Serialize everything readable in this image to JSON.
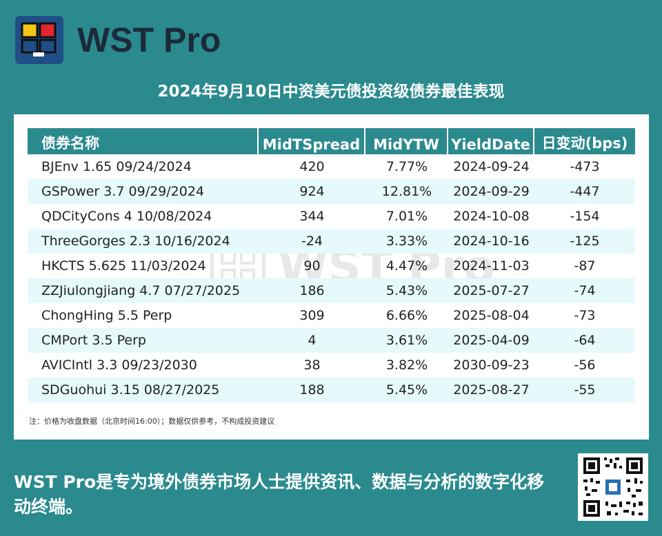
{
  "brand": {
    "name": "WST Pro",
    "logo_colors": [
      "#f5c518",
      "#e3262f",
      "#1f4f86",
      "#ffffff"
    ]
  },
  "title": "2024年9月10日中资美元债投资级债券最佳表现",
  "table": {
    "headers": [
      "债券名称",
      "MidTSpread",
      "MidYTW",
      "YieldDate",
      "日变动(bps)"
    ],
    "rows": [
      {
        "name": "BJEnv 1.65 09/24/2024",
        "spread": "420",
        "ytw": "7.77%",
        "date": "2024-09-24",
        "change": "-473"
      },
      {
        "name": "GSPower 3.7 09/29/2024",
        "spread": "924",
        "ytw": "12.81%",
        "date": "2024-09-29",
        "change": "-447"
      },
      {
        "name": "QDCityCons 4 10/08/2024",
        "spread": "344",
        "ytw": "7.01%",
        "date": "2024-10-08",
        "change": "-154"
      },
      {
        "name": "ThreeGorges 2.3 10/16/2024",
        "spread": "-24",
        "ytw": "3.33%",
        "date": "2024-10-16",
        "change": "-125"
      },
      {
        "name": "HKCTS 5.625 11/03/2024",
        "spread": "90",
        "ytw": "4.47%",
        "date": "2024-11-03",
        "change": "-87"
      },
      {
        "name": "ZZJiulongjiang 4.7 07/27/2025",
        "spread": "186",
        "ytw": "5.43%",
        "date": "2025-07-27",
        "change": "-74"
      },
      {
        "name": "ChongHing 5.5 Perp",
        "spread": "309",
        "ytw": "6.66%",
        "date": "2025-08-04",
        "change": "-73"
      },
      {
        "name": "CMPort 3.5 Perp",
        "spread": "4",
        "ytw": "3.61%",
        "date": "2025-04-09",
        "change": "-64"
      },
      {
        "name": "AVICIntl 3.3 09/23/2030",
        "spread": "38",
        "ytw": "3.82%",
        "date": "2030-09-23",
        "change": "-56"
      },
      {
        "name": "SDGuohui 3.15 08/27/2025",
        "spread": "188",
        "ytw": "5.45%",
        "date": "2025-08-27",
        "change": "-55"
      }
    ]
  },
  "note": "注：价格为收盘数据（北京时间16:00）；数据仅供参考，不构成投资建议",
  "watermark": "WST Pro",
  "footer": "WST Pro是专为境外债券市场人士提供资讯、数据与分析的数字化移动终端。",
  "colors": {
    "background": "#2a8a8e",
    "header_bg": "#2a8a8e",
    "row_alt": "#e6f9fb",
    "brand_text": "#1c2a3a"
  }
}
